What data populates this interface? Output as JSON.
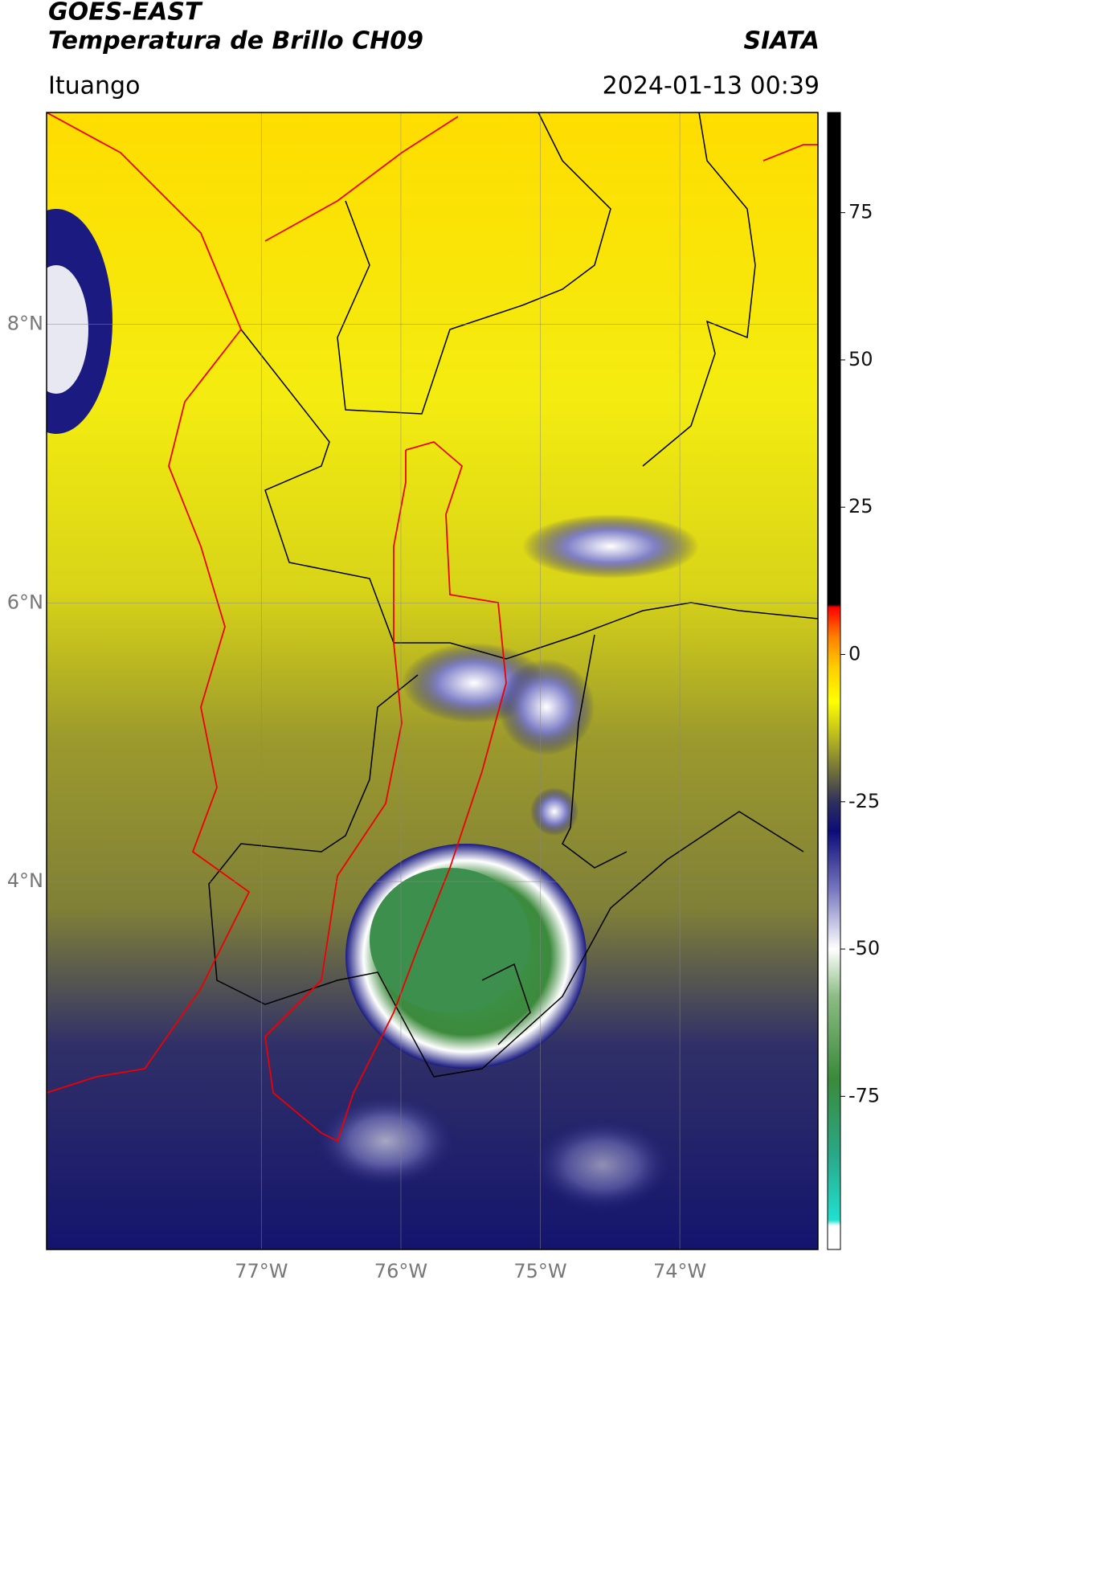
{
  "header": {
    "title": "GOES-EAST",
    "subtitle": "Temperatura de Brillo CH09",
    "source": "SIATA",
    "location": "Ituango",
    "datetime": "2024-01-13 00:39"
  },
  "chart_data": {
    "type": "map",
    "xlim": [
      -78.54,
      -73.01
    ],
    "ylim": [
      1.36,
      9.52
    ],
    "xticks": [
      {
        "value": -77,
        "label": "77°W"
      },
      {
        "value": -76,
        "label": "76°W"
      },
      {
        "value": -75,
        "label": "75°W"
      },
      {
        "value": -74,
        "label": "74°W"
      }
    ],
    "yticks": [
      {
        "value": 8,
        "label": "8°N"
      },
      {
        "value": 6,
        "label": "6°N"
      },
      {
        "value": 4,
        "label": "4°N"
      }
    ],
    "grid": true,
    "colorbar": {
      "lim": [
        -101,
        92
      ],
      "ticks": [
        75,
        50,
        25,
        0,
        -25,
        -50,
        -75
      ],
      "stops": [
        {
          "value": -101,
          "color": "#ffffff"
        },
        {
          "value": -97,
          "color": "#ffffff"
        },
        {
          "value": -96,
          "color": "#20e0d0"
        },
        {
          "value": -85,
          "color": "#2aa888"
        },
        {
          "value": -72,
          "color": "#3a8a3a"
        },
        {
          "value": -58,
          "color": "#8cbc84"
        },
        {
          "value": -50,
          "color": "#ffffff"
        },
        {
          "value": -40,
          "color": "#7878c0"
        },
        {
          "value": -30,
          "color": "#0c0c78"
        },
        {
          "value": -25,
          "color": "#30305c"
        },
        {
          "value": -20,
          "color": "#6e6e3c"
        },
        {
          "value": -14,
          "color": "#b8b820"
        },
        {
          "value": -8,
          "color": "#ffff00"
        },
        {
          "value": -2,
          "color": "#ffcc00"
        },
        {
          "value": 3,
          "color": "#ff8000"
        },
        {
          "value": 8,
          "color": "#ff0000"
        },
        {
          "value": 8.5,
          "color": "#000000"
        },
        {
          "value": 92,
          "color": "#000000"
        }
      ]
    }
  }
}
